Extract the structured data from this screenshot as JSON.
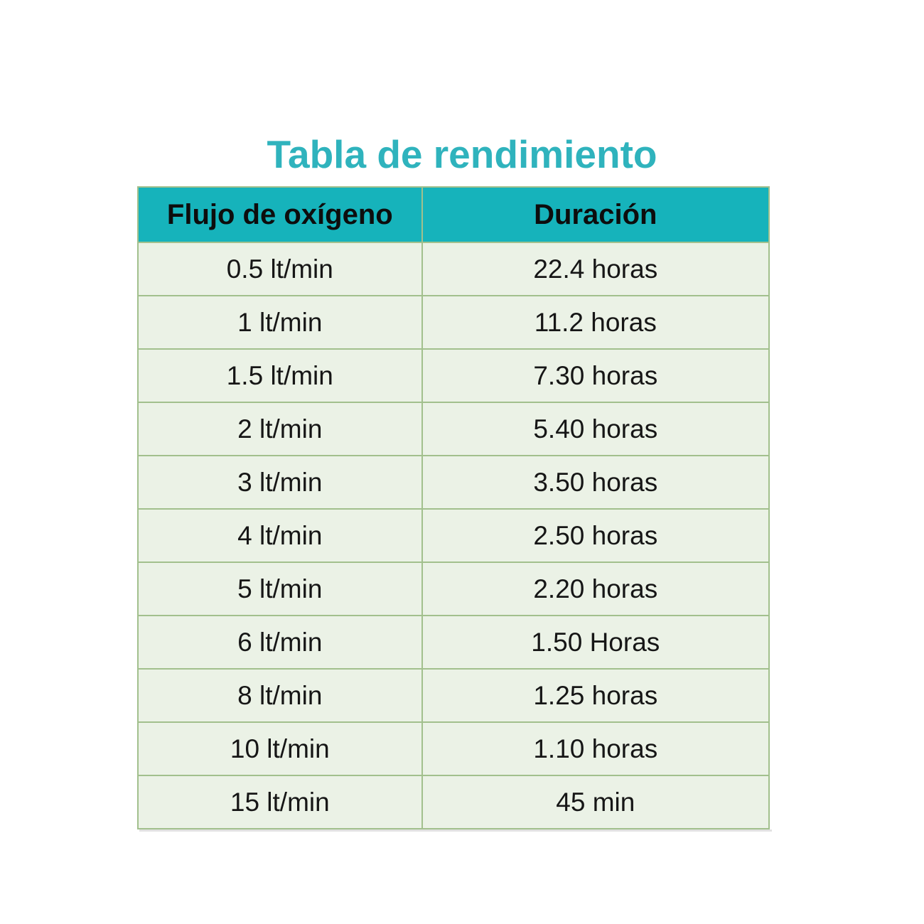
{
  "title": "Tabla de rendimiento",
  "colors": {
    "title_teal": "#2fb3bd",
    "header_bg": "#16b3bb",
    "row_bg": "#ebf2e6",
    "border_green": "#a2c08d",
    "text": "#161616"
  },
  "table": {
    "headers": [
      "Flujo de oxígeno",
      "Duración"
    ],
    "rows": [
      {
        "flow": "0.5 lt/min",
        "duration": "22.4 horas"
      },
      {
        "flow": "1 lt/min",
        "duration": "11.2 horas"
      },
      {
        "flow": "1.5 lt/min",
        "duration": "7.30 horas"
      },
      {
        "flow": "2 lt/min",
        "duration": "5.40 horas"
      },
      {
        "flow": "3 lt/min",
        "duration": "3.50 horas"
      },
      {
        "flow": "4 lt/min",
        "duration": "2.50 horas"
      },
      {
        "flow": "5 lt/min",
        "duration": "2.20 horas"
      },
      {
        "flow": "6 lt/min",
        "duration": "1.50 Horas"
      },
      {
        "flow": "8 lt/min",
        "duration": "1.25 horas"
      },
      {
        "flow": "10 lt/min",
        "duration": "1.10 horas"
      },
      {
        "flow": "15 lt/min",
        "duration": "45 min"
      }
    ]
  },
  "chart_data": {
    "type": "table",
    "title": "Tabla de rendimiento",
    "columns": [
      "Flujo de oxígeno",
      "Duración"
    ],
    "rows": [
      [
        "0.5 lt/min",
        "22.4 horas"
      ],
      [
        "1 lt/min",
        "11.2 horas"
      ],
      [
        "1.5 lt/min",
        "7.30 horas"
      ],
      [
        "2 lt/min",
        "5.40 horas"
      ],
      [
        "3 lt/min",
        "3.50 horas"
      ],
      [
        "4 lt/min",
        "2.50 horas"
      ],
      [
        "5 lt/min",
        "2.20 horas"
      ],
      [
        "6 lt/min",
        "1.50 Horas"
      ],
      [
        "8 lt/min",
        "1.25 horas"
      ],
      [
        "10 lt/min",
        "1.10 horas"
      ],
      [
        "15 lt/min",
        "45 min"
      ]
    ]
  }
}
